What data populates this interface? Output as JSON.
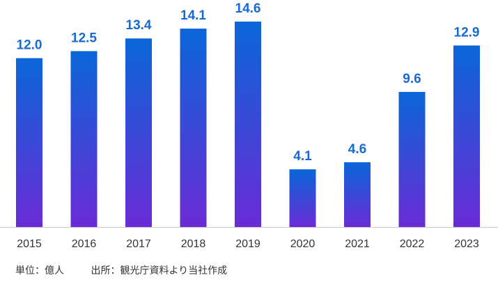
{
  "chart_data": {
    "type": "bar",
    "categories": [
      "2015",
      "2016",
      "2017",
      "2018",
      "2019",
      "2020",
      "2021",
      "2022",
      "2023"
    ],
    "values": [
      12.0,
      12.5,
      13.4,
      14.1,
      14.6,
      4.1,
      4.6,
      9.6,
      12.9
    ],
    "value_labels": [
      "12.0",
      "12.5",
      "13.4",
      "14.1",
      "14.6",
      "4.1",
      "4.6",
      "9.6",
      "12.9"
    ],
    "ylim": [
      0,
      14.6
    ],
    "grid": false,
    "legend": "none",
    "colors": {
      "bar_top": "#0a66d9",
      "bar_bottom": "#6a2bd6",
      "label": "#1769d3",
      "axis": "#c9c9c9",
      "tick": "#333333"
    }
  },
  "notes": {
    "unit": "単位：億人",
    "source": "出所：観光庁資料より当社作成"
  }
}
